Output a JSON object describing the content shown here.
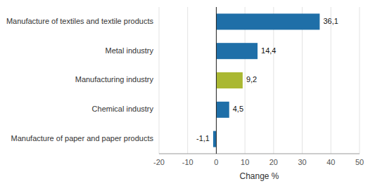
{
  "chart_data": {
    "type": "bar",
    "orientation": "horizontal",
    "categories": [
      "Manufacture of textiles and textile products",
      "Metal industry",
      "Manufacturing industry",
      "Chemical industry",
      "Manufacture of paper and paper products"
    ],
    "values": [
      36.1,
      14.4,
      9.2,
      4.5,
      -1.1
    ],
    "value_labels": [
      "36,1",
      "14,4",
      "9,2",
      "4,5",
      "-1,1"
    ],
    "data_labels": true,
    "colors": [
      "#1f6fa8",
      "#1f6fa8",
      "#aab832",
      "#1f6fa8",
      "#1f6fa8"
    ],
    "xlabel": "Change %",
    "xlim": [
      -20,
      50
    ],
    "xticks": [
      -20,
      -10,
      0,
      10,
      20,
      30,
      40,
      50
    ],
    "grid": true
  }
}
